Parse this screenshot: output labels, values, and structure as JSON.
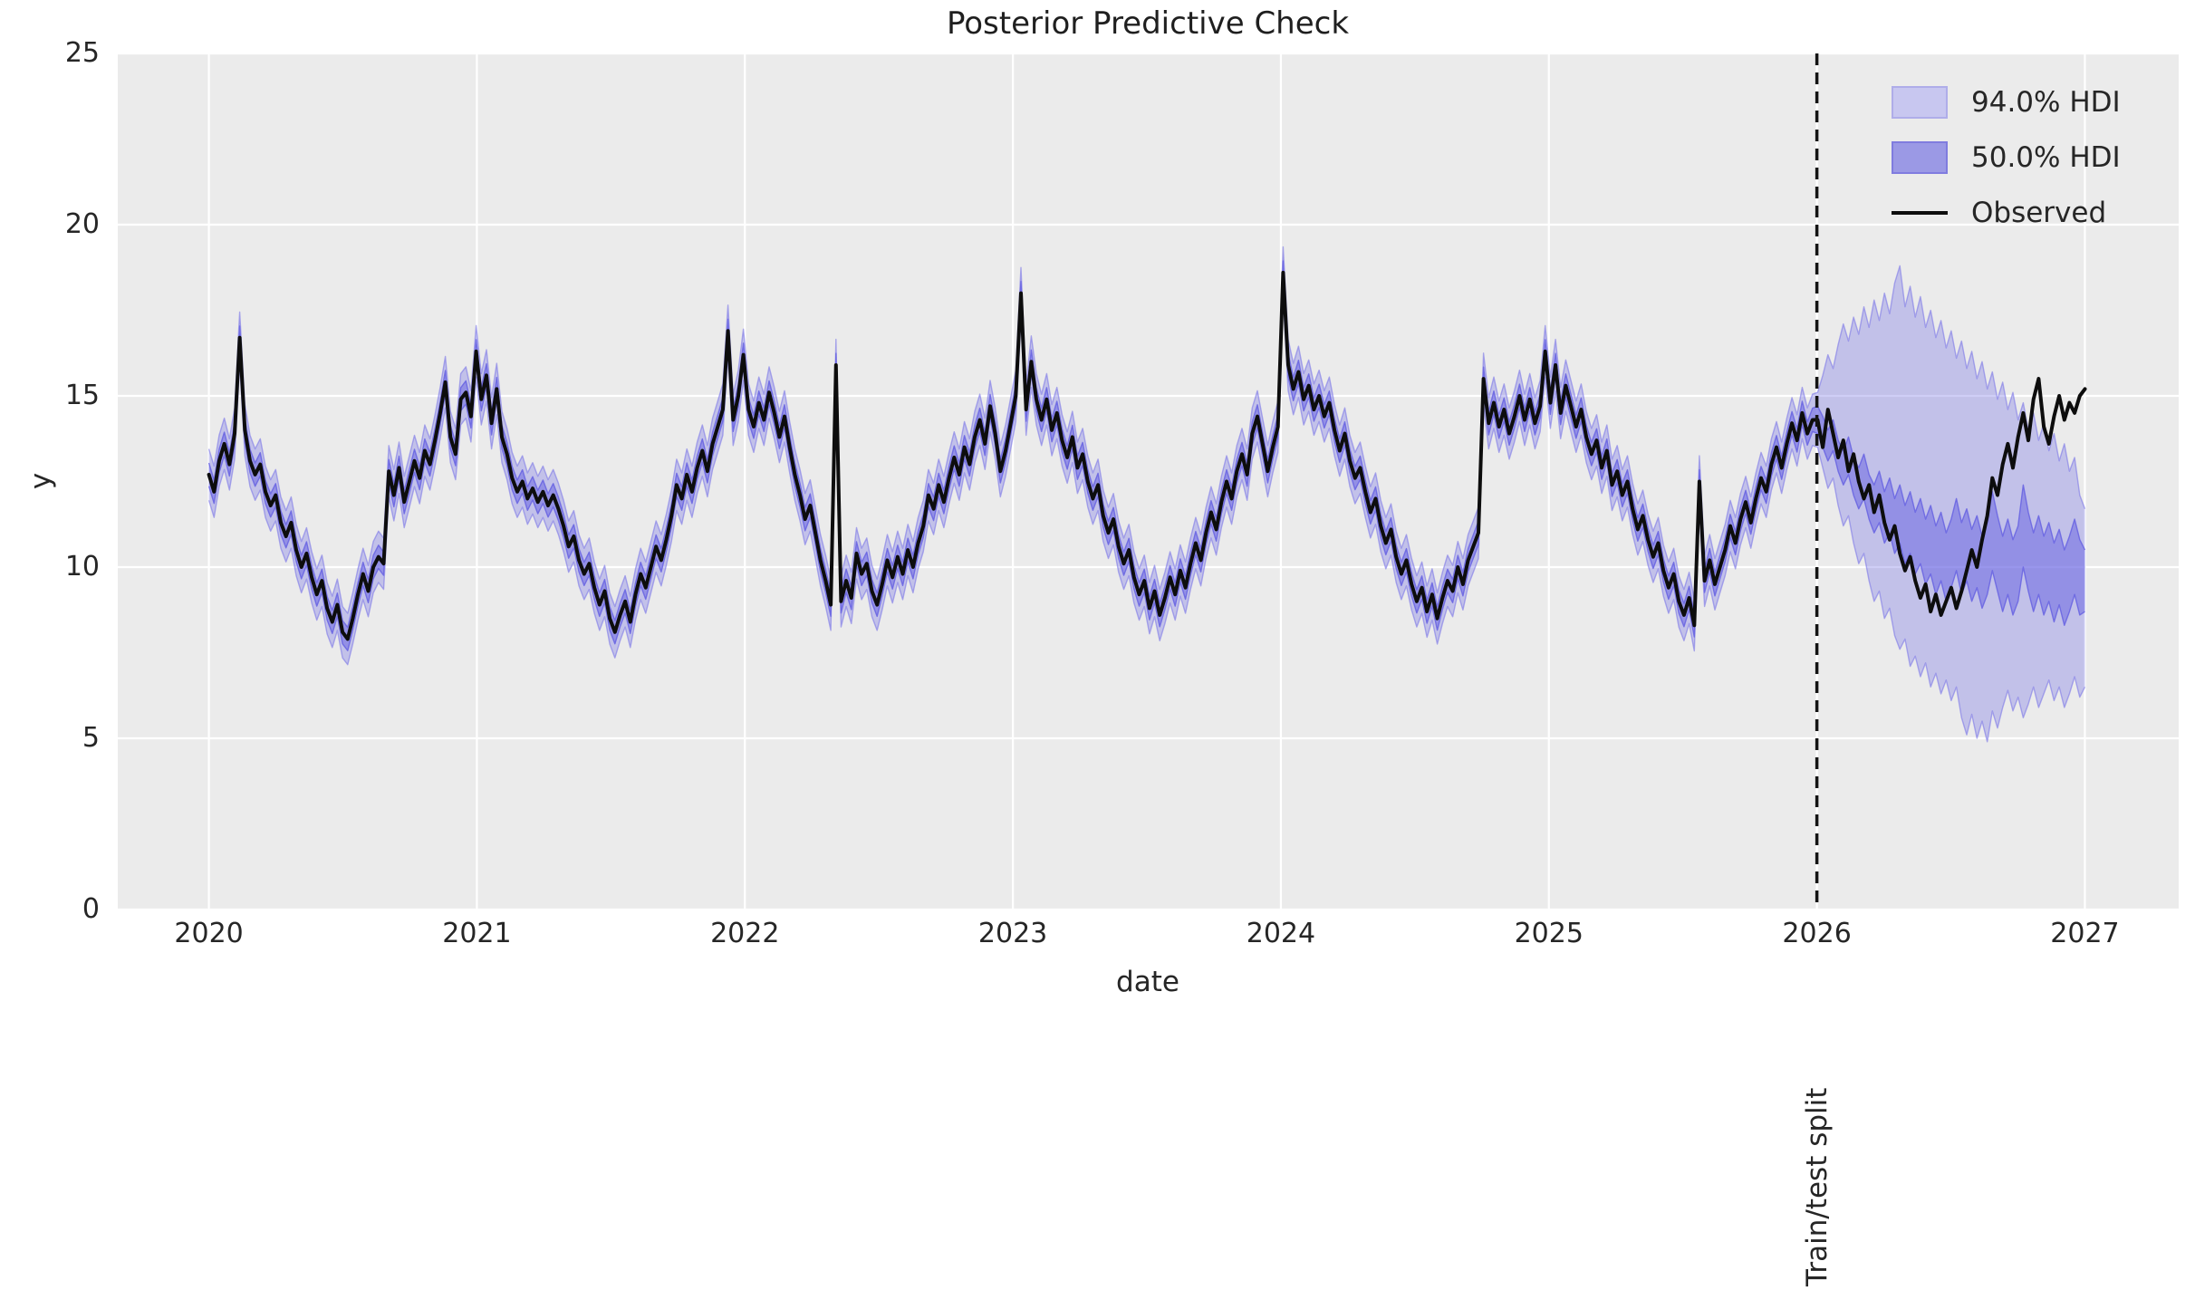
{
  "chart_data": {
    "type": "line",
    "title": "Posterior Predictive Check",
    "xlabel": "date",
    "ylabel": "y",
    "x_ticks": [
      2020,
      2021,
      2022,
      2023,
      2024,
      2025,
      2026,
      2027
    ],
    "x_tick_labels": [
      "2020",
      "2021",
      "2022",
      "2023",
      "2024",
      "2025",
      "2026",
      "2027"
    ],
    "y_ticks": [
      0,
      5,
      10,
      15,
      20,
      25
    ],
    "y_tick_labels": [
      "0",
      "5",
      "10",
      "15",
      "20",
      "25"
    ],
    "x_range": [
      2019.66,
      2027.35
    ],
    "y_range": [
      0,
      25
    ],
    "grid": true,
    "colors": {
      "axes_bg": "#ebebeb",
      "grid": "#ffffff",
      "observed": "#0d0d0d",
      "hdi94_fill": "rgba(123,119,231,0.36)",
      "hdi94_edge": "rgba(123,119,231,0.6)",
      "hdi50_fill": "rgba(103,99,226,0.52)",
      "hdi50_edge": "rgba(103,99,226,0.85)",
      "split_line": "#141414"
    },
    "legend": {
      "position": "upper right",
      "items": [
        {
          "label": "94.0% HDI",
          "type": "patch",
          "fill": "#c8c7f0",
          "border": "#afade9"
        },
        {
          "label": "50.0% HDI",
          "type": "patch",
          "fill": "#9b99e5",
          "border": "#807cdf"
        },
        {
          "label": "Observed",
          "type": "line",
          "color": "#0d0d0d"
        }
      ]
    },
    "split": {
      "year": 2026,
      "label": "Train/test split"
    },
    "series": {
      "x0": 2020.0,
      "dx_years": 0.0191781,
      "observed": [
        12.7,
        12.2,
        13.1,
        13.6,
        13.0,
        13.9,
        16.7,
        14.0,
        13.1,
        12.7,
        13.0,
        12.2,
        11.8,
        12.1,
        11.3,
        10.9,
        11.3,
        10.5,
        10.0,
        10.4,
        9.7,
        9.2,
        9.6,
        8.8,
        8.4,
        8.9,
        8.1,
        7.9,
        8.5,
        9.2,
        9.8,
        9.3,
        10.0,
        10.3,
        10.1,
        12.8,
        12.1,
        12.9,
        11.9,
        12.5,
        13.1,
        12.6,
        13.4,
        13.0,
        13.7,
        14.5,
        15.4,
        13.8,
        13.3,
        14.9,
        15.1,
        14.4,
        16.3,
        14.9,
        15.6,
        14.2,
        15.2,
        13.8,
        13.3,
        12.6,
        12.2,
        12.5,
        12.0,
        12.3,
        11.9,
        12.2,
        11.8,
        12.1,
        11.7,
        11.2,
        10.6,
        10.9,
        10.2,
        9.8,
        10.1,
        9.4,
        8.9,
        9.3,
        8.5,
        8.1,
        8.6,
        9.0,
        8.4,
        9.2,
        9.8,
        9.4,
        10.0,
        10.6,
        10.2,
        10.8,
        11.5,
        12.4,
        12.0,
        12.7,
        12.2,
        12.9,
        13.4,
        12.8,
        13.6,
        14.1,
        14.6,
        16.9,
        14.3,
        15.0,
        16.2,
        14.6,
        14.1,
        14.8,
        14.3,
        15.1,
        14.5,
        13.8,
        14.4,
        13.5,
        12.7,
        12.1,
        11.4,
        11.8,
        11.0,
        10.2,
        9.6,
        8.9,
        15.9,
        9.0,
        9.6,
        9.1,
        10.4,
        9.8,
        10.1,
        9.3,
        8.9,
        9.5,
        10.2,
        9.7,
        10.3,
        9.8,
        10.5,
        10.0,
        10.7,
        11.2,
        12.1,
        11.7,
        12.4,
        11.9,
        12.6,
        13.2,
        12.7,
        13.5,
        13.0,
        13.8,
        14.3,
        13.6,
        14.7,
        13.9,
        12.8,
        13.4,
        14.2,
        15.0,
        18.0,
        14.6,
        16.0,
        14.9,
        14.3,
        14.9,
        14.0,
        14.5,
        13.7,
        13.2,
        13.8,
        12.9,
        13.3,
        12.5,
        12.0,
        12.4,
        11.5,
        11.0,
        11.4,
        10.6,
        10.1,
        10.5,
        9.7,
        9.2,
        9.6,
        8.8,
        9.3,
        8.6,
        9.1,
        9.7,
        9.2,
        9.9,
        9.4,
        10.1,
        10.7,
        10.2,
        11.0,
        11.6,
        11.1,
        11.9,
        12.5,
        12.0,
        12.8,
        13.3,
        12.7,
        13.9,
        14.4,
        13.6,
        12.8,
        13.5,
        14.1,
        18.6,
        15.9,
        15.2,
        15.7,
        14.9,
        15.3,
        14.6,
        15.0,
        14.4,
        14.8,
        14.0,
        13.4,
        13.9,
        13.1,
        12.6,
        12.9,
        12.2,
        11.6,
        12.0,
        11.2,
        10.7,
        11.1,
        10.3,
        9.8,
        10.2,
        9.5,
        9.0,
        9.4,
        8.7,
        9.2,
        8.5,
        9.1,
        9.6,
        9.3,
        10.0,
        9.5,
        10.2,
        10.6,
        11.0,
        15.5,
        14.2,
        14.8,
        14.1,
        14.6,
        13.9,
        14.4,
        15.0,
        14.3,
        14.9,
        14.2,
        14.7,
        16.3,
        14.8,
        15.9,
        14.5,
        15.3,
        14.7,
        14.1,
        14.6,
        13.8,
        13.3,
        13.7,
        12.9,
        13.4,
        12.4,
        12.8,
        12.1,
        12.5,
        11.7,
        11.1,
        11.5,
        10.8,
        10.3,
        10.7,
        9.9,
        9.4,
        9.8,
        9.0,
        8.6,
        9.1,
        8.3,
        12.5,
        9.6,
        10.2,
        9.5,
        10.0,
        10.5,
        11.2,
        10.7,
        11.4,
        11.9,
        11.3,
        12.0,
        12.6,
        12.2,
        13.0,
        13.5,
        12.9,
        13.6,
        14.2,
        13.7,
        14.5,
        13.9,
        14.3,
        14.3,
        13.5,
        14.6,
        13.9,
        13.2,
        13.7,
        12.8,
        13.3,
        12.5,
        12.0,
        12.4,
        11.6,
        12.1,
        11.3,
        10.8,
        11.2,
        10.4,
        9.9,
        10.3,
        9.6,
        9.1,
        9.5,
        8.7,
        9.2,
        8.6,
        9.0,
        9.4,
        8.8,
        9.3,
        9.9,
        10.5,
        10.0,
        10.8,
        11.5,
        12.6,
        12.1,
        13.0,
        13.6,
        12.9,
        13.8,
        14.5,
        13.7,
        14.9,
        15.5,
        14.1,
        13.6,
        14.4,
        15.0,
        14.3,
        14.8,
        14.5,
        15.0,
        15.2
      ],
      "train": {
        "end_index": 313,
        "hdi94_halfwidth": 0.75,
        "hdi50_halfwidth": 0.34
      },
      "forecast": {
        "start_index": 313,
        "hdi94_upper": [
          15.1,
          15.6,
          16.2,
          15.8,
          16.5,
          17.1,
          16.6,
          17.3,
          16.8,
          17.6,
          17.0,
          17.8,
          17.2,
          18.0,
          17.4,
          18.3,
          18.8,
          17.6,
          18.2,
          17.3,
          17.9,
          17.0,
          17.5,
          16.7,
          17.2,
          16.4,
          16.9,
          16.1,
          16.6,
          15.8,
          16.3,
          15.5,
          16.0,
          15.2,
          15.7,
          14.9,
          15.4,
          14.6,
          15.1,
          14.3,
          14.8,
          14.0,
          14.5,
          13.7,
          14.2,
          13.4,
          13.9,
          13.1,
          13.6,
          12.8,
          13.2,
          12.1,
          11.7
        ],
        "hdi94_lower": [
          13.5,
          12.9,
          12.3,
          12.6,
          11.8,
          11.2,
          11.5,
          10.7,
          10.1,
          10.4,
          9.6,
          9.0,
          9.3,
          8.5,
          8.8,
          8.0,
          7.6,
          7.9,
          7.1,
          7.4,
          6.8,
          7.2,
          6.5,
          6.9,
          6.3,
          6.7,
          6.1,
          6.5,
          5.6,
          5.1,
          5.7,
          5.0,
          5.5,
          4.9,
          5.8,
          5.3,
          5.9,
          6.4,
          5.8,
          6.2,
          5.6,
          6.0,
          6.5,
          5.9,
          6.3,
          6.7,
          6.1,
          6.5,
          5.9,
          6.3,
          6.8,
          6.2,
          6.5
        ],
        "hdi50_upper": [
          14.7,
          14.4,
          14.0,
          14.3,
          13.7,
          13.4,
          13.8,
          13.2,
          12.9,
          13.3,
          12.7,
          12.4,
          12.8,
          12.2,
          12.6,
          12.0,
          12.4,
          11.8,
          12.2,
          11.6,
          12.0,
          11.4,
          11.8,
          11.2,
          11.6,
          11.0,
          11.4,
          12.0,
          11.3,
          11.7,
          11.1,
          11.5,
          10.9,
          11.3,
          12.2,
          11.5,
          10.9,
          11.4,
          10.8,
          11.2,
          12.4,
          11.6,
          11.0,
          11.5,
          10.9,
          11.3,
          10.7,
          11.1,
          10.5,
          10.9,
          11.4,
          10.8,
          10.5
        ],
        "hdi50_lower": [
          13.9,
          13.5,
          13.1,
          13.4,
          12.8,
          12.4,
          12.7,
          12.1,
          11.7,
          12.0,
          11.4,
          11.0,
          11.3,
          10.7,
          11.0,
          10.4,
          10.7,
          10.1,
          10.4,
          9.8,
          10.1,
          9.5,
          9.8,
          9.2,
          9.6,
          9.0,
          9.4,
          9.9,
          9.2,
          9.6,
          9.0,
          9.4,
          8.8,
          9.2,
          9.9,
          9.3,
          8.7,
          9.2,
          8.6,
          9.0,
          10.0,
          9.3,
          8.7,
          9.2,
          8.6,
          9.0,
          8.4,
          8.9,
          8.3,
          8.7,
          9.2,
          8.6,
          8.7
        ]
      }
    }
  }
}
